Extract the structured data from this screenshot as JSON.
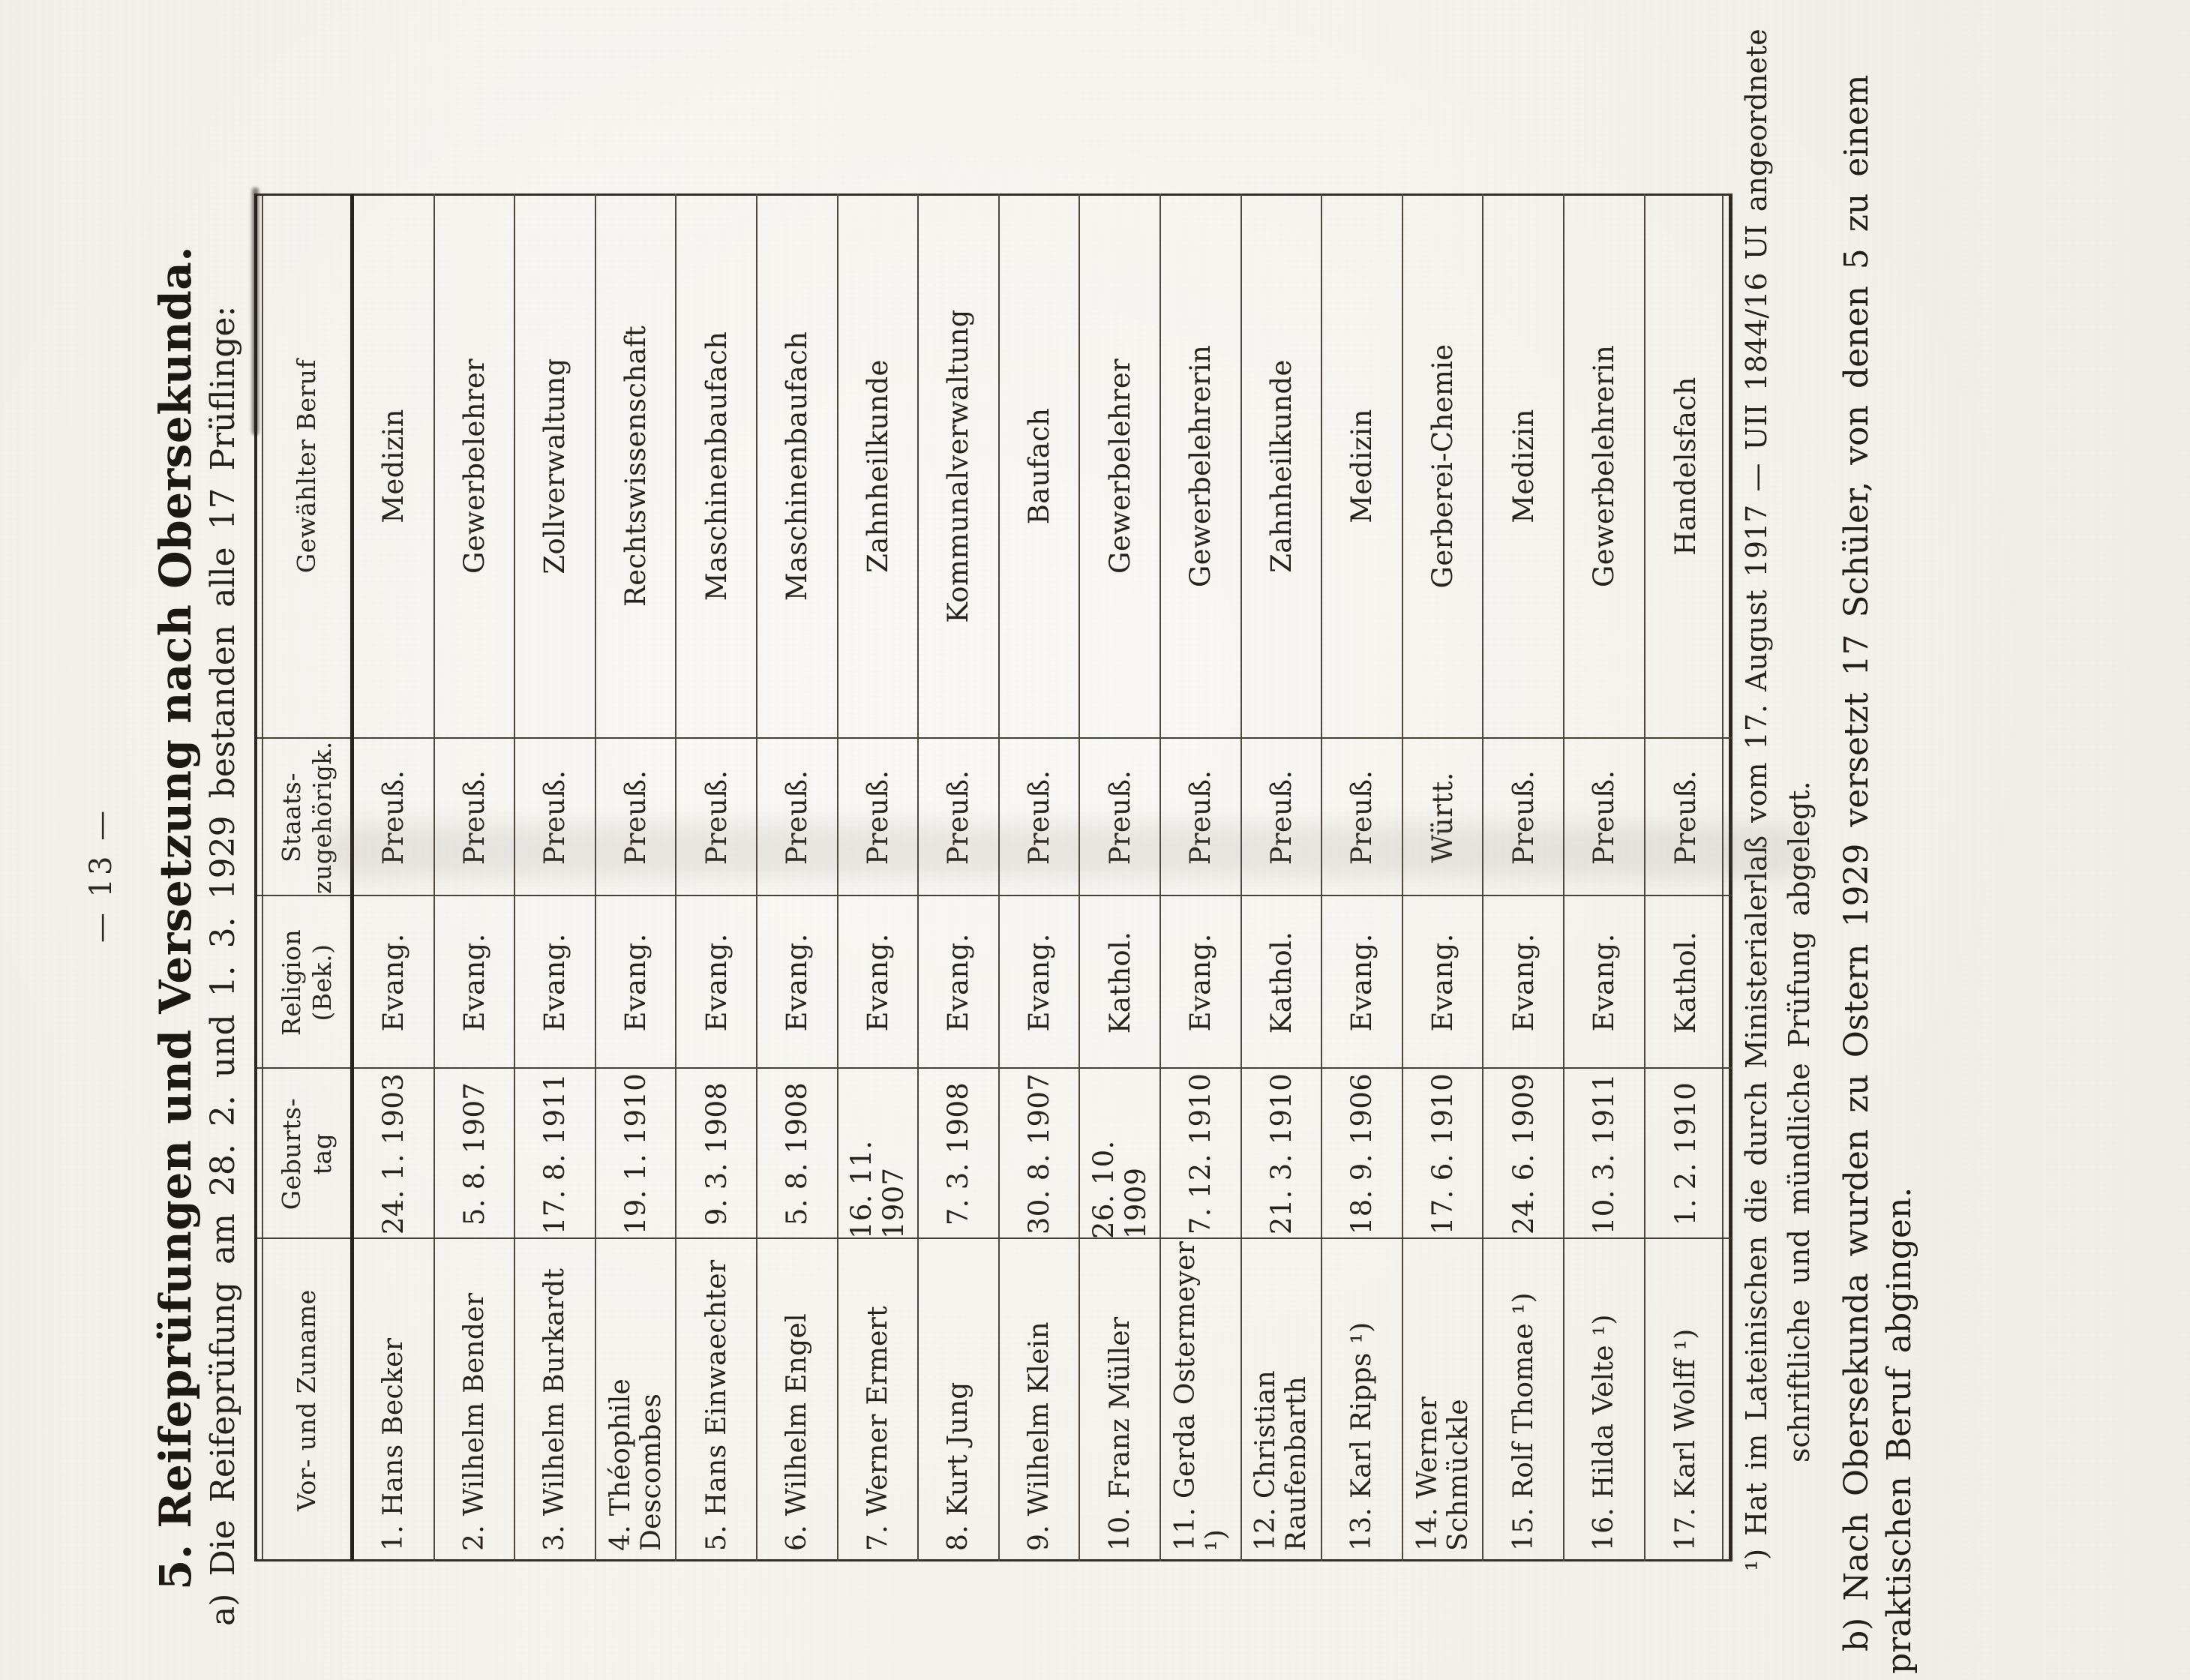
{
  "page": {
    "page_number": "— 13 —",
    "section_a_heading": "5. Reifeprüfungen und Versetzung nach Obersekunda.",
    "section_a_subheading": "a) Die Reifeprüfung am 28. 2. und 1. 3. 1929 bestanden alle 17 Prüflinge:",
    "footnote_line1": "¹) Hat im Lateinischen die durch Ministerialerlaß vom 17. August 1917 — UII 1844/16 UI angeordnete",
    "footnote_line2": "schriftliche und mündliche Prüfung abgelegt.",
    "section_b_line1": "b) Nach Obersekunda wurden zu Ostern 1929 versetzt 17 Schüler, von denen 5 zu einem",
    "section_b_line2": "praktischen Beruf abgingen."
  },
  "table": {
    "headers": {
      "name": "Vor- und Zuname",
      "birth_line1": "Geburts-",
      "birth_line2": "tag",
      "religion_line1": "Religion",
      "religion_line2": "(Bek.)",
      "state_line1": "Staats-",
      "state_line2": "zugehörigk.",
      "profession": "Gewählter Beruf"
    },
    "rows": [
      {
        "name": "1. Hans Becker",
        "birthday": "24. 1. 1903",
        "religion": "Evang.",
        "state": "Preuß.",
        "profession": "Medizin"
      },
      {
        "name": "2. Wilhelm Bender",
        "birthday": "5. 8. 1907",
        "religion": "Evang.",
        "state": "Preuß.",
        "profession": "Gewerbelehrer"
      },
      {
        "name": "3. Wilhelm Burkardt",
        "birthday": "17. 8. 1911",
        "religion": "Evang.",
        "state": "Preuß.",
        "profession": "Zollverwaltung"
      },
      {
        "name": "4. Théophile Descombes",
        "birthday": "19. 1. 1910",
        "religion": "Evang.",
        "state": "Preuß.",
        "profession": "Rechtswissenschaft"
      },
      {
        "name": "5. Hans Einwaechter",
        "birthday": "9. 3. 1908",
        "religion": "Evang.",
        "state": "Preuß.",
        "profession": "Maschinenbaufach"
      },
      {
        "name": "6. Wilhelm Engel",
        "birthday": "5. 8. 1908",
        "religion": "Evang.",
        "state": "Preuß.",
        "profession": "Maschinenbaufach"
      },
      {
        "name": "7. Werner Ermert",
        "birthday": "16. 11. 1907",
        "religion": "Evang.",
        "state": "Preuß.",
        "profession": "Zahnheilkunde"
      },
      {
        "name": "8. Kurt Jung",
        "birthday": "7. 3. 1908",
        "religion": "Evang.",
        "state": "Preuß.",
        "profession": "Kommunalverwaltung"
      },
      {
        "name": "9. Wilhelm Klein",
        "birthday": "30. 8. 1907",
        "religion": "Evang.",
        "state": "Preuß.",
        "profession": "Baufach"
      },
      {
        "name": "10. Franz Müller",
        "birthday": "26. 10. 1909",
        "religion": "Kathol.",
        "state": "Preuß.",
        "profession": "Gewerbelehrer"
      },
      {
        "name": "11. Gerda Ostermeyer ¹)",
        "birthday": "7. 12. 1910",
        "religion": "Evang.",
        "state": "Preuß.",
        "profession": "Gewerbelehrerin"
      },
      {
        "name": "12. Christian Raufenbarth",
        "birthday": "21. 3. 1910",
        "religion": "Kathol.",
        "state": "Preuß.",
        "profession": "Zahnheilkunde"
      },
      {
        "name": "13. Karl Ripps ¹)",
        "birthday": "18. 9. 1906",
        "religion": "Evang.",
        "state": "Preuß.",
        "profession": "Medizin"
      },
      {
        "name": "14. Werner Schmückle",
        "birthday": "17. 6. 1910",
        "religion": "Evang.",
        "state": "Württ.",
        "profession": "Gerberei-Chemie"
      },
      {
        "name": "15. Rolf Thomae ¹)",
        "birthday": "24. 6. 1909",
        "religion": "Evang.",
        "state": "Preuß.",
        "profession": "Medizin"
      },
      {
        "name": "16. Hilda Velte ¹)",
        "birthday": "10. 3. 1911",
        "religion": "Evang.",
        "state": "Preuß.",
        "profession": "Gewerbelehrerin"
      },
      {
        "name": "17. Karl Wolff ¹)",
        "birthday": "1. 2. 1910",
        "religion": "Kathol.",
        "state": "Preuß.",
        "profession": "Handelsfach"
      }
    ]
  }
}
